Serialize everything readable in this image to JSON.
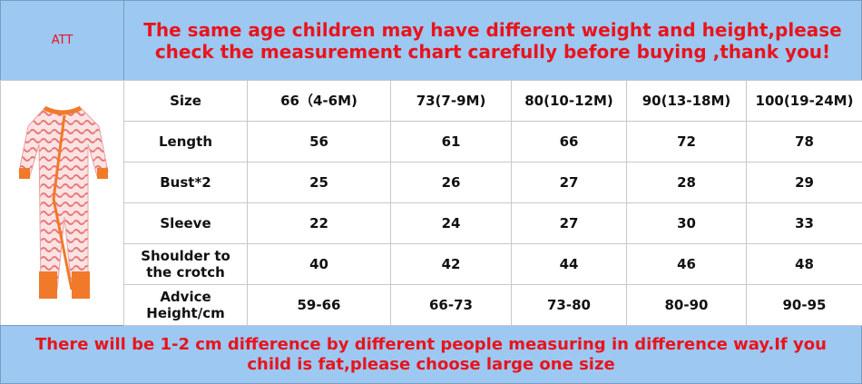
{
  "header": {
    "label": "ATT",
    "title": "The same age children may have different weight and height,please check the measurement chart carefully before buying ,thank you!"
  },
  "table": {
    "rows": [
      [
        "Size",
        "66（4-6M)",
        "73(7-9M)",
        "80(10-12M)",
        "90(13-18M)",
        "100(19-24M)"
      ],
      [
        "Length",
        56,
        61,
        66,
        72,
        78
      ],
      [
        "Bust*2",
        25,
        26,
        27,
        28,
        29
      ],
      [
        "Sleeve",
        22,
        24,
        27,
        30,
        33
      ],
      [
        "Shoulder to the crotch",
        40,
        42,
        44,
        46,
        48
      ],
      [
        "Advice Height/cm",
        "59-66",
        "66-73",
        "73-80",
        "80-90",
        "90-95"
      ]
    ]
  },
  "footer": {
    "note": "There will be 1-2 cm difference by different people measuring in difference way.If you child is fat,please choose large one size"
  }
}
